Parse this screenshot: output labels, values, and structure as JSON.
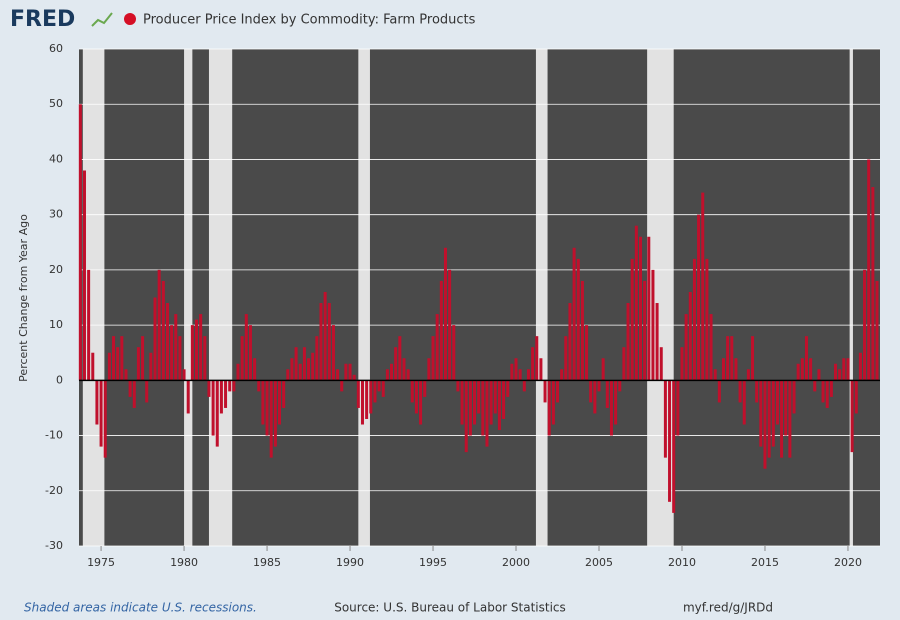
{
  "logo": "FRED",
  "chart_data": {
    "type": "bar",
    "title": "Producer Price Index by Commodity: Farm Products",
    "y_label": "Percent Change from Year Ago",
    "note": "Shaded areas indicate U.S. recessions.",
    "source": "Source: U.S. Bureau of Labor Statistics",
    "link": "myf.red/g/JRDd",
    "color": "#c0102c",
    "background": "#4a4a4a",
    "recession_color": "#e2e2e2",
    "grid": true,
    "xlim": [
      1973.67,
      2021.93
    ],
    "xticks": [
      1975,
      1980,
      1985,
      1990,
      1995,
      2000,
      2005,
      2010,
      2015,
      2020
    ],
    "ylim": [
      -30,
      60
    ],
    "yticks": [
      -30,
      -20,
      -10,
      0,
      10,
      20,
      30,
      40,
      50,
      60
    ],
    "recessions": [
      [
        1973.9,
        1975.2
      ],
      [
        1980.0,
        1980.5
      ],
      [
        1981.5,
        1982.9
      ],
      [
        1990.5,
        1991.2
      ],
      [
        2001.2,
        2001.9
      ],
      [
        2007.9,
        2009.5
      ],
      [
        2020.1,
        2020.3
      ]
    ],
    "x": [
      1973.75,
      1974,
      1974.25,
      1974.5,
      1974.75,
      1975,
      1975.25,
      1975.5,
      1975.75,
      1976,
      1976.25,
      1976.5,
      1976.75,
      1977,
      1977.25,
      1977.5,
      1977.75,
      1978,
      1978.25,
      1978.5,
      1978.75,
      1979,
      1979.25,
      1979.5,
      1979.75,
      1980,
      1980.25,
      1980.5,
      1980.75,
      1981,
      1981.25,
      1981.5,
      1981.75,
      1982,
      1982.25,
      1982.5,
      1982.75,
      1983,
      1983.25,
      1983.5,
      1983.75,
      1984,
      1984.25,
      1984.5,
      1984.75,
      1985,
      1985.25,
      1985.5,
      1985.75,
      1986,
      1986.25,
      1986.5,
      1986.75,
      1987,
      1987.25,
      1987.5,
      1987.75,
      1988,
      1988.25,
      1988.5,
      1988.75,
      1989,
      1989.25,
      1989.5,
      1989.75,
      1990,
      1990.25,
      1990.5,
      1990.75,
      1991,
      1991.25,
      1991.5,
      1991.75,
      1992,
      1992.25,
      1992.5,
      1992.75,
      1993,
      1993.25,
      1993.5,
      1993.75,
      1994,
      1994.25,
      1994.5,
      1994.75,
      1995,
      1995.25,
      1995.5,
      1995.75,
      1996,
      1996.25,
      1996.5,
      1996.75,
      1997,
      1997.25,
      1997.5,
      1997.75,
      1998,
      1998.25,
      1998.5,
      1998.75,
      1999,
      1999.25,
      1999.5,
      1999.75,
      2000,
      2000.25,
      2000.5,
      2000.75,
      2001,
      2001.25,
      2001.5,
      2001.75,
      2002,
      2002.25,
      2002.5,
      2002.75,
      2003,
      2003.25,
      2003.5,
      2003.75,
      2004,
      2004.25,
      2004.5,
      2004.75,
      2005,
      2005.25,
      2005.5,
      2005.75,
      2006,
      2006.25,
      2006.5,
      2006.75,
      2007,
      2007.25,
      2007.5,
      2007.75,
      2008,
      2008.25,
      2008.5,
      2008.75,
      2009,
      2009.25,
      2009.5,
      2009.75,
      2010,
      2010.25,
      2010.5,
      2010.75,
      2011,
      2011.25,
      2011.5,
      2011.75,
      2012,
      2012.25,
      2012.5,
      2012.75,
      2013,
      2013.25,
      2013.5,
      2013.75,
      2014,
      2014.25,
      2014.5,
      2014.75,
      2015,
      2015.25,
      2015.5,
      2015.75,
      2016,
      2016.25,
      2016.5,
      2016.75,
      2017,
      2017.25,
      2017.5,
      2017.75,
      2018,
      2018.25,
      2018.5,
      2018.75,
      2019,
      2019.25,
      2019.5,
      2019.75,
      2020,
      2020.25,
      2020.5,
      2020.75,
      2021,
      2021.25,
      2021.5,
      2021.75
    ],
    "values": [
      50,
      38,
      20,
      5,
      -8,
      -12,
      -14,
      5,
      8,
      6,
      8,
      2,
      -3,
      -5,
      6,
      8,
      -4,
      5,
      15,
      20,
      18,
      14,
      10,
      12,
      8,
      2,
      -6,
      10,
      11,
      12,
      8,
      -3,
      -10,
      -12,
      -6,
      -5,
      -2,
      -2,
      3,
      8,
      12,
      10,
      4,
      -2,
      -8,
      -10,
      -14,
      -12,
      -8,
      -5,
      2,
      4,
      6,
      3,
      6,
      4,
      5,
      8,
      14,
      16,
      14,
      10,
      2,
      -2,
      3,
      3,
      1,
      -5,
      -8,
      -7,
      -6,
      -4,
      -2,
      -3,
      2,
      3,
      6,
      8,
      4,
      2,
      -4,
      -6,
      -8,
      -3,
      4,
      8,
      12,
      18,
      24,
      20,
      10,
      -2,
      -8,
      -13,
      -10,
      -8,
      -6,
      -10,
      -12,
      -8,
      -6,
      -9,
      -7,
      -3,
      3,
      4,
      2,
      -2,
      2,
      6,
      8,
      4,
      -4,
      -10,
      -8,
      -4,
      2,
      8,
      14,
      24,
      22,
      18,
      10,
      -4,
      -6,
      -2,
      4,
      -5,
      -10,
      -8,
      -2,
      6,
      14,
      22,
      28,
      26,
      18,
      26,
      20,
      14,
      6,
      -14,
      -22,
      -24,
      -10,
      6,
      12,
      16,
      22,
      30,
      34,
      22,
      12,
      2,
      -4,
      4,
      8,
      8,
      4,
      -4,
      -8,
      2,
      8,
      -4,
      -12,
      -16,
      -14,
      -12,
      -8,
      -14,
      -10,
      -14,
      -6,
      3,
      4,
      8,
      4,
      -2,
      2,
      -4,
      -5,
      -3,
      3,
      2,
      4,
      4,
      -13,
      -6,
      5,
      20,
      40,
      35,
      18
    ]
  }
}
